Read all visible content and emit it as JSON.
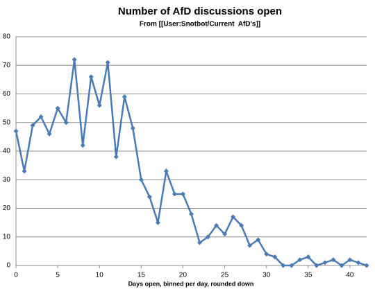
{
  "chart_data": {
    "type": "line",
    "title": "Number of AfD discussions open",
    "subtitle": "From [[User:Snotbot/Current  AfD's]]",
    "x_label": "Days open, binned per day, rounded down",
    "x": [
      0,
      1,
      2,
      3,
      4,
      5,
      6,
      7,
      8,
      9,
      10,
      11,
      12,
      13,
      14,
      15,
      16,
      17,
      18,
      19,
      20,
      21,
      22,
      23,
      24,
      25,
      26,
      27,
      28,
      29,
      30,
      31,
      32,
      33,
      34,
      35,
      36,
      37,
      38,
      39,
      40,
      41,
      42
    ],
    "series": [
      {
        "color": "#4a7ab5",
        "values": [
          47,
          33,
          49,
          52,
          46,
          55,
          50,
          72,
          42,
          66,
          56,
          71,
          38,
          59,
          48,
          30,
          24,
          15,
          33,
          25,
          25,
          18,
          8,
          10,
          14,
          11,
          17,
          14,
          7,
          9,
          4,
          3,
          0,
          0,
          2,
          3,
          0,
          1,
          2,
          0,
          2,
          1,
          0
        ]
      }
    ],
    "xlim": [
      0,
      42
    ],
    "xticks": [
      0,
      5,
      10,
      15,
      20,
      25,
      30,
      35,
      40
    ],
    "ylim": [
      0,
      80
    ],
    "yticks": [
      0,
      10,
      20,
      30,
      40,
      50,
      60,
      70,
      80
    ],
    "grid": true
  }
}
